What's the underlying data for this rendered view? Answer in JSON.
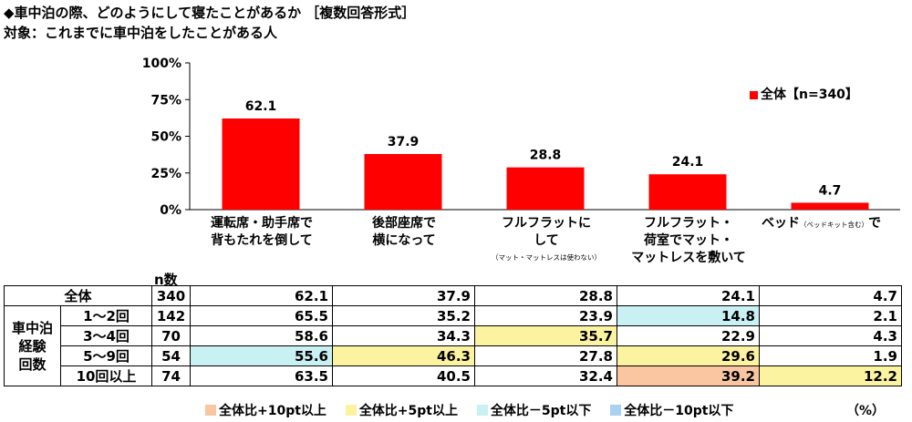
{
  "title": "◆車中泊の際、どのようにして寝たことがあるか ［複数回答形式］",
  "subtitle": "対象：これまでに車中泊をしたことがある人",
  "colors": {
    "bar": "#ff0000",
    "plus10": "#f9c6a1",
    "plus5": "#fbf3a0",
    "minus5": "#c9f0f3",
    "minus10": "#a9d1f0"
  },
  "chart_data": {
    "type": "bar",
    "title": "◆車中泊の際、どのようにして寝たことがあるか ［複数回答形式］",
    "subtitle": "対象：これまでに車中泊をしたことがある人",
    "categories": [
      "運転席・助手席で背もたれを倒して",
      "後部座席で横になって",
      "フルフラットにして（マット・マットレスは使わない）",
      "フルフラット・荷室でマット・マットレスを敷いて",
      "ベッド（ベッドキット含む）で"
    ],
    "series": [
      {
        "name": "全体【n=340】",
        "values": [
          62.1,
          37.9,
          28.8,
          24.1,
          4.7
        ]
      }
    ],
    "ylim": [
      0,
      100
    ],
    "yticks": [
      "0%",
      "25%",
      "50%",
      "75%",
      "100%"
    ],
    "ytick_values": [
      0,
      25,
      50,
      75,
      100
    ],
    "legend_position": "top-right",
    "grid": false
  },
  "legend": {
    "label": "全体【n=340】"
  },
  "category_labels": [
    {
      "line1": "運転席・助手席で",
      "line2": "背もたれを倒して"
    },
    {
      "line1": "後部座席で",
      "line2": "横になって"
    },
    {
      "line1": "フルフラットに",
      "line2": "して",
      "note": "（マット・マットレスは使わない）"
    },
    {
      "line1": "フルフラット・",
      "line2": "荷室でマット・",
      "line3": "マットレスを敷いて"
    },
    {
      "main": "ベッド",
      "small": "（ベッドキット含む）",
      "tail": "で"
    }
  ],
  "table": {
    "n_header": "n数",
    "group_label": [
      "車中泊",
      "経験",
      "回数"
    ],
    "rows": [
      {
        "label": "全体",
        "n": "340",
        "values": [
          "62.1",
          "37.9",
          "28.8",
          "24.1",
          "4.7"
        ],
        "hl": [
          "",
          "",
          "",
          "",
          ""
        ]
      },
      {
        "label": "1～2回",
        "n": "142",
        "values": [
          "65.5",
          "35.2",
          "23.9",
          "14.8",
          "2.1"
        ],
        "hl": [
          "",
          "",
          "",
          "m5",
          ""
        ]
      },
      {
        "label": "3～4回",
        "n": "70",
        "values": [
          "58.6",
          "34.3",
          "35.7",
          "22.9",
          "4.3"
        ],
        "hl": [
          "",
          "",
          "p5",
          "",
          ""
        ]
      },
      {
        "label": "5～9回",
        "n": "54",
        "values": [
          "55.6",
          "46.3",
          "27.8",
          "29.6",
          "1.9"
        ],
        "hl": [
          "m5",
          "p5",
          "",
          "p5",
          ""
        ]
      },
      {
        "label": "10回以上",
        "n": "74",
        "values": [
          "63.5",
          "40.5",
          "32.4",
          "39.2",
          "12.2"
        ],
        "hl": [
          "",
          "",
          "",
          "p10",
          "p5"
        ]
      }
    ]
  },
  "bottom_legend": {
    "plus10": "全体比+10pt以上",
    "plus5": "全体比+5pt以上",
    "minus5": "全体比－5pt以下",
    "minus10": "全体比－10pt以下",
    "unit": "（%）"
  }
}
